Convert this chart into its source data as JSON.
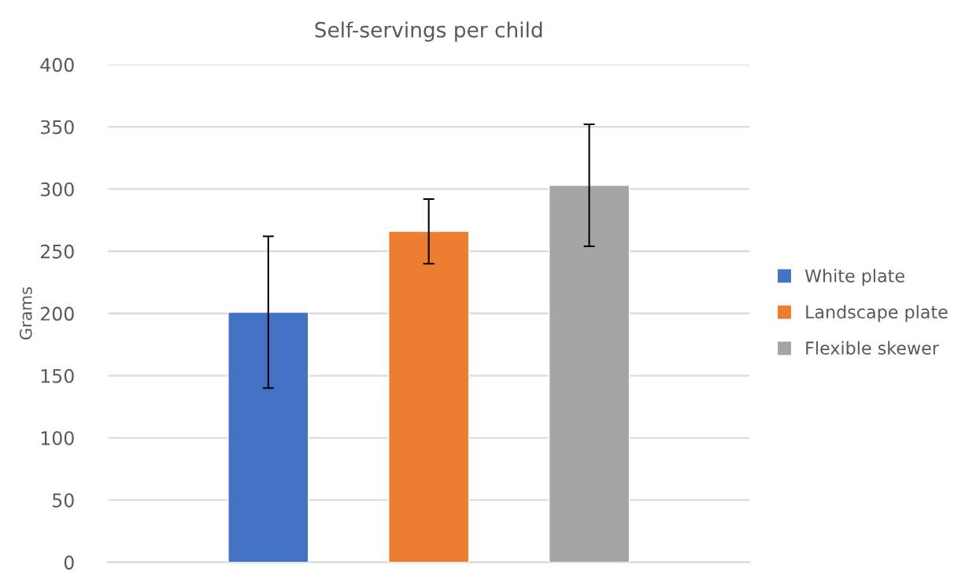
{
  "chart_data": {
    "type": "bar",
    "title": "Self-servings per child",
    "ylabel": "Grams",
    "categories": [
      null,
      null,
      null
    ],
    "series": [
      {
        "name": "White plate",
        "color": "#4472c4",
        "values": [
          201,
          null,
          null
        ],
        "errors": [
          61,
          null,
          null
        ]
      },
      {
        "name": "Landscape plate",
        "color": "#ed7d31",
        "values": [
          null,
          266,
          null
        ],
        "errors": [
          null,
          26,
          null
        ]
      },
      {
        "name": "Flexible skewer",
        "color": "#a5a5a5",
        "values": [
          null,
          null,
          303
        ],
        "errors": [
          null,
          null,
          49
        ]
      }
    ],
    "ylim": [
      0,
      400
    ],
    "yticks": [
      0,
      50,
      100,
      150,
      200,
      250,
      300,
      350,
      400
    ],
    "grid": "y",
    "legend": "right",
    "tick_labels": "y"
  }
}
